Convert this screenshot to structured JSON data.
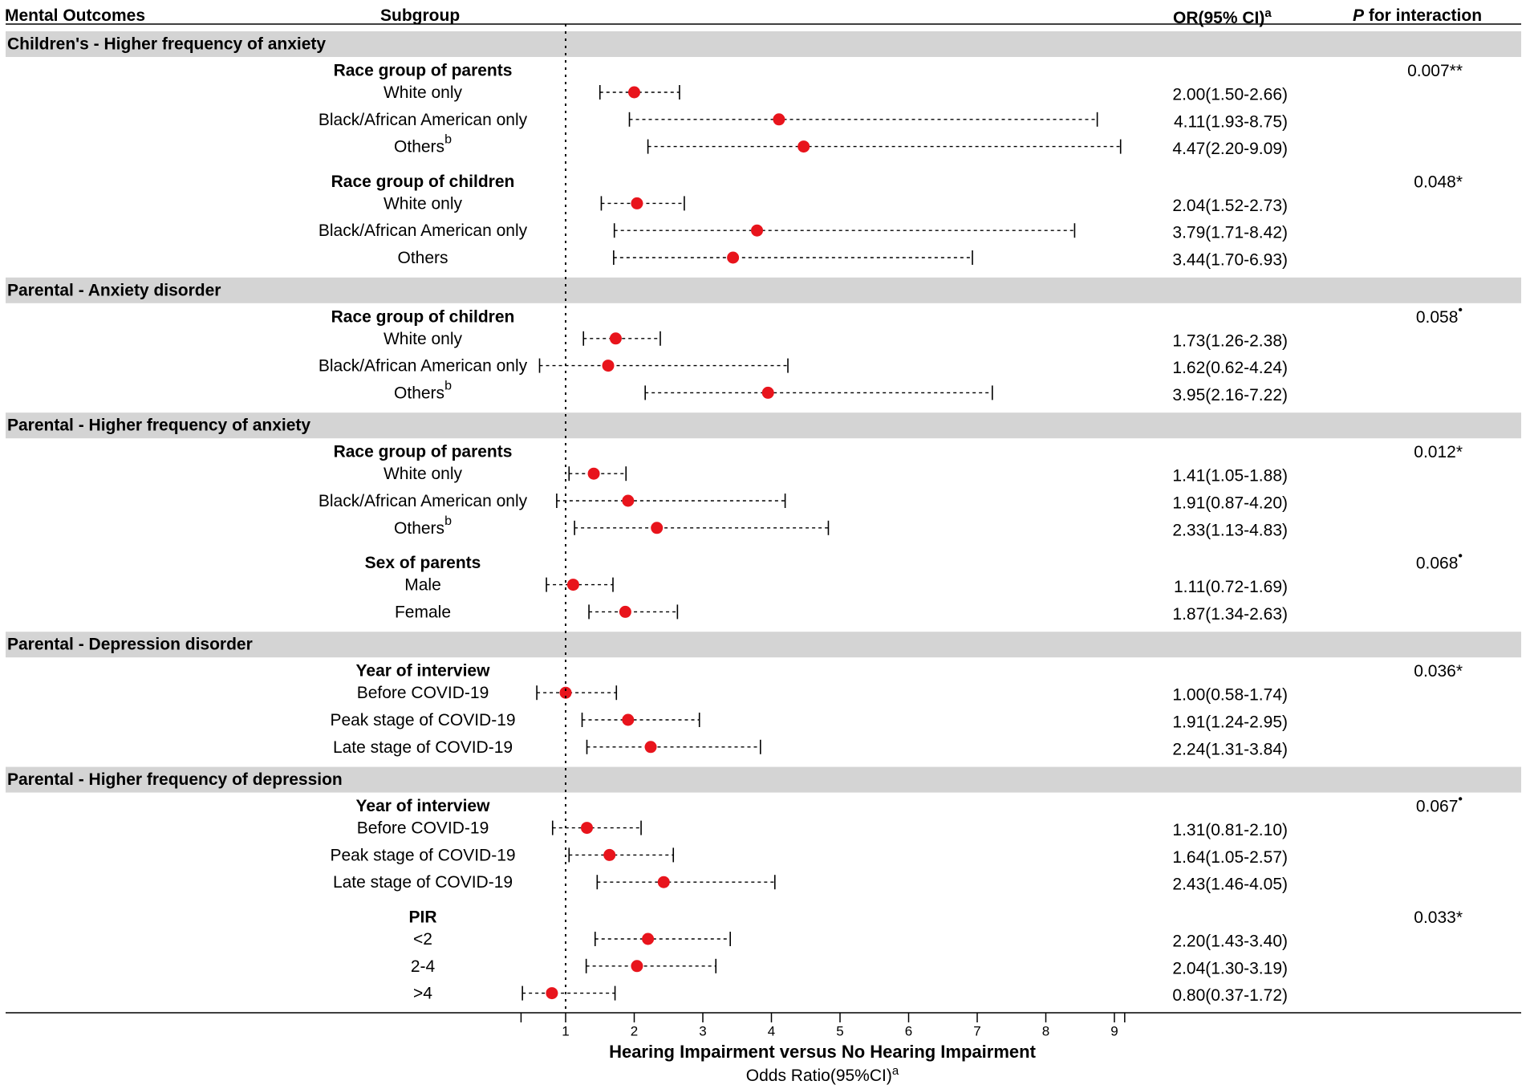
{
  "headers": {
    "outcome": "Mental Outcomes",
    "subgroup": "Subgroup",
    "or": "OR(95% CI)",
    "or_sup": "a",
    "p_italic": "P",
    "p_rest": " for interaction"
  },
  "chart_data": {
    "type": "forest",
    "title": "",
    "xlabel": "Hearing Impairment versus No Hearing Impairment",
    "xlabel_sub": "Odds Ratio(95%CI)",
    "xlabel_sub_sup": "a",
    "xlim": [
      0.35,
      9.15
    ],
    "reference_line": 1,
    "xticks": [
      1,
      2,
      3,
      4,
      5,
      6,
      7,
      8,
      9
    ],
    "sections": [
      {
        "outcome": "Children's - Higher frequency of anxiety",
        "groups": [
          {
            "name": "Race group of parents",
            "p_value": "0.007**",
            "p_mark": "",
            "rows": [
              {
                "label": "White only",
                "label_sup": "",
                "or": 2.0,
                "lo": 1.5,
                "hi": 2.66,
                "text": "2.00(1.50-2.66)"
              },
              {
                "label": "Black/African American only",
                "label_sup": "",
                "or": 4.11,
                "lo": 1.93,
                "hi": 8.75,
                "text": "4.11(1.93-8.75)"
              },
              {
                "label": "Others",
                "label_sup": "b",
                "or": 4.47,
                "lo": 2.2,
                "hi": 9.09,
                "text": "4.47(2.20-9.09)"
              }
            ]
          },
          {
            "name": "Race group of children",
            "p_value": "0.048*",
            "p_mark": "",
            "rows": [
              {
                "label": "White only",
                "label_sup": "",
                "or": 2.04,
                "lo": 1.52,
                "hi": 2.73,
                "text": "2.04(1.52-2.73)"
              },
              {
                "label": "Black/African American only",
                "label_sup": "",
                "or": 3.79,
                "lo": 1.71,
                "hi": 8.42,
                "text": "3.79(1.71-8.42)"
              },
              {
                "label": "Others",
                "label_sup": "",
                "or": 3.44,
                "lo": 1.7,
                "hi": 6.93,
                "text": "3.44(1.70-6.93)"
              }
            ]
          }
        ]
      },
      {
        "outcome": "Parental - Anxiety disorder",
        "groups": [
          {
            "name": "Race group of children",
            "p_value": "0.058",
            "p_mark": "•",
            "rows": [
              {
                "label": "White only",
                "label_sup": "",
                "or": 1.73,
                "lo": 1.26,
                "hi": 2.38,
                "text": "1.73(1.26-2.38)"
              },
              {
                "label": "Black/African American only",
                "label_sup": "",
                "or": 1.62,
                "lo": 0.62,
                "hi": 4.24,
                "text": "1.62(0.62-4.24)"
              },
              {
                "label": "Others",
                "label_sup": "b",
                "or": 3.95,
                "lo": 2.16,
                "hi": 7.22,
                "text": "3.95(2.16-7.22)"
              }
            ]
          }
        ]
      },
      {
        "outcome": "Parental - Higher frequency of anxiety",
        "groups": [
          {
            "name": "Race group of parents",
            "p_value": "0.012*",
            "p_mark": "",
            "rows": [
              {
                "label": "White only",
                "label_sup": "",
                "or": 1.41,
                "lo": 1.05,
                "hi": 1.88,
                "text": "1.41(1.05-1.88)"
              },
              {
                "label": "Black/African American only",
                "label_sup": "",
                "or": 1.91,
                "lo": 0.87,
                "hi": 4.2,
                "text": "1.91(0.87-4.20)"
              },
              {
                "label": "Others",
                "label_sup": "b",
                "or": 2.33,
                "lo": 1.13,
                "hi": 4.83,
                "text": "2.33(1.13-4.83)"
              }
            ]
          },
          {
            "name": "Sex of parents",
            "p_value": "0.068",
            "p_mark": "•",
            "rows": [
              {
                "label": "Male",
                "label_sup": "",
                "or": 1.11,
                "lo": 0.72,
                "hi": 1.69,
                "text": "1.11(0.72-1.69)"
              },
              {
                "label": "Female",
                "label_sup": "",
                "or": 1.87,
                "lo": 1.34,
                "hi": 2.63,
                "text": "1.87(1.34-2.63)"
              }
            ]
          }
        ]
      },
      {
        "outcome": "Parental - Depression disorder",
        "groups": [
          {
            "name": "Year of interview",
            "p_value": "0.036*",
            "p_mark": "",
            "rows": [
              {
                "label": "Before COVID-19",
                "label_sup": "",
                "or": 1.0,
                "lo": 0.58,
                "hi": 1.74,
                "text": "1.00(0.58-1.74)"
              },
              {
                "label": "Peak stage of COVID-19",
                "label_sup": "",
                "or": 1.91,
                "lo": 1.24,
                "hi": 2.95,
                "text": "1.91(1.24-2.95)"
              },
              {
                "label": "Late stage of COVID-19",
                "label_sup": "",
                "or": 2.24,
                "lo": 1.31,
                "hi": 3.84,
                "text": "2.24(1.31-3.84)"
              }
            ]
          }
        ]
      },
      {
        "outcome": "Parental - Higher frequency of depression",
        "groups": [
          {
            "name": "Year of interview",
            "p_value": "0.067",
            "p_mark": "•",
            "rows": [
              {
                "label": "Before COVID-19",
                "label_sup": "",
                "or": 1.31,
                "lo": 0.81,
                "hi": 2.1,
                "text": "1.31(0.81-2.10)"
              },
              {
                "label": "Peak stage of COVID-19",
                "label_sup": "",
                "or": 1.64,
                "lo": 1.05,
                "hi": 2.57,
                "text": "1.64(1.05-2.57)"
              },
              {
                "label": "Late stage of COVID-19",
                "label_sup": "",
                "or": 2.43,
                "lo": 1.46,
                "hi": 4.05,
                "text": "2.43(1.46-4.05)"
              }
            ]
          },
          {
            "name": "PIR",
            "p_value": "0.033*",
            "p_mark": "",
            "rows": [
              {
                "label": "<2",
                "label_sup": "",
                "or": 2.2,
                "lo": 1.43,
                "hi": 3.4,
                "text": "2.20(1.43-3.40)"
              },
              {
                "label": "2-4",
                "label_sup": "",
                "or": 2.04,
                "lo": 1.3,
                "hi": 3.19,
                "text": "2.04(1.30-3.19)"
              },
              {
                "label": ">4",
                "label_sup": "",
                "or": 0.8,
                "lo": 0.37,
                "hi": 1.72,
                "text": "0.80(0.37-1.72)"
              }
            ]
          }
        ]
      }
    ]
  },
  "colors": {
    "point": "#e8141c",
    "section_bg": "#d4d4d4",
    "line": "#000000"
  }
}
